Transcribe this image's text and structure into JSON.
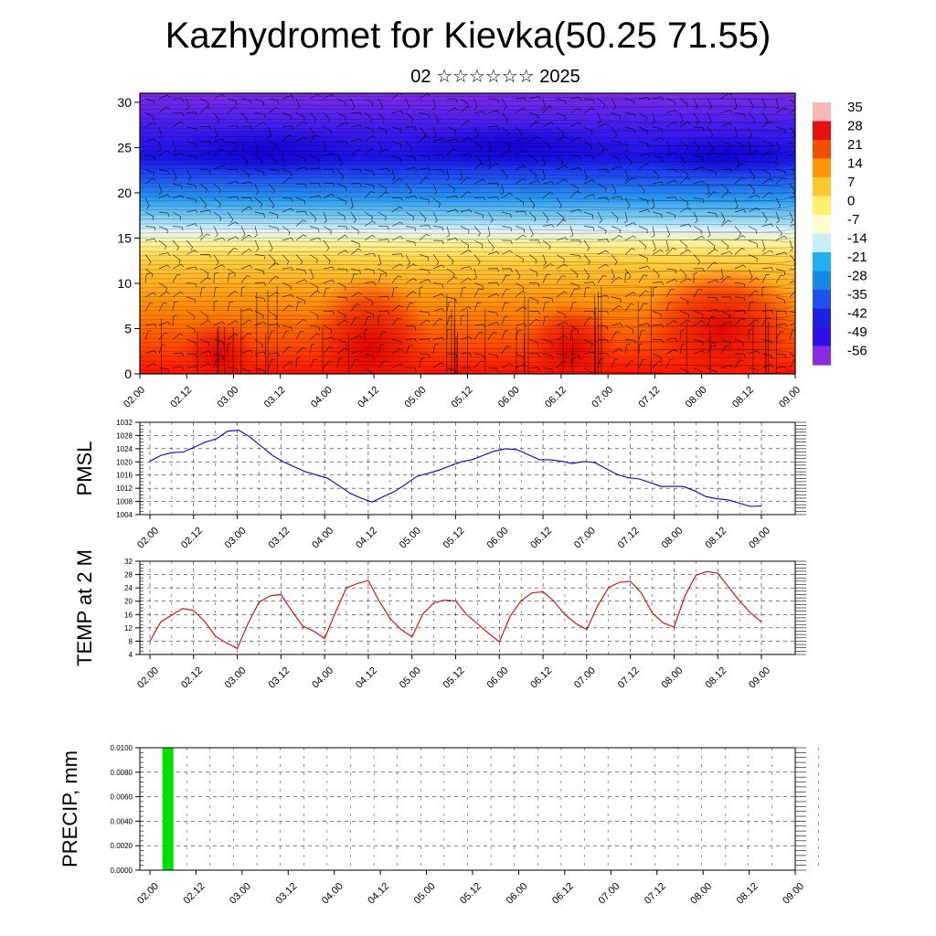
{
  "title": "Kazhydromet for Kievka(50.25 71.55)",
  "subtitle": "02 ☆☆☆☆☆☆ 2025",
  "x_labels": [
    "02.00",
    "02.12",
    "03.00",
    "03.12",
    "04.00",
    "04.12",
    "05.00",
    "05.12",
    "06.00",
    "06.12",
    "07.00",
    "07.12",
    "08.00",
    "08.12",
    "09.00"
  ],
  "chart_data": [
    {
      "type": "heatmap",
      "name": "vertical cross-section",
      "x": [
        "02.00",
        "02.12",
        "03.00",
        "03.12",
        "04.00",
        "04.12",
        "05.00",
        "05.12",
        "06.00",
        "06.12",
        "07.00",
        "07.12",
        "08.00",
        "08.12",
        "09.00"
      ],
      "ylim": [
        0,
        31
      ],
      "y_ticks": [
        "0",
        "5",
        "10",
        "15",
        "20",
        "25",
        "30"
      ],
      "colorbar": {
        "labels": [
          "35",
          "28",
          "21",
          "14",
          "7",
          "0",
          "-7",
          "-14",
          "-21",
          "-28",
          "-35",
          "-42",
          "-49",
          "-56"
        ],
        "colors": [
          "#f8b8b8",
          "#e81010",
          "#f05000",
          "#ff9800",
          "#ffc830",
          "#fff070",
          "#fffdd0",
          "#c8ecf8",
          "#20b0f0",
          "#1888e8",
          "#2050f0",
          "#2020e0",
          "#3010e8",
          "#8a2be2"
        ]
      }
    },
    {
      "type": "line",
      "ylabel": "PMSL",
      "ylim": [
        1004,
        1032
      ],
      "y_ticks": [
        "1004",
        "1008",
        "1012",
        "1016",
        "1020",
        "1024",
        "1028",
        "1032"
      ],
      "color": "#0000cc",
      "x_label_indices": [
        0,
        1,
        2,
        3,
        4,
        5,
        6,
        7,
        8,
        9,
        10,
        11,
        12,
        13,
        14
      ],
      "values": [
        1020.2,
        1022,
        1022.8,
        1023,
        1024.5,
        1026,
        1027,
        1029.3,
        1029.6,
        1027.5,
        1024.8,
        1022,
        1020,
        1018.5,
        1017,
        1016,
        1015,
        1012.8,
        1010.5,
        1009,
        1007.8,
        1009.5,
        1011,
        1013.2,
        1015.6,
        1016.5,
        1017.5,
        1018.8,
        1020,
        1020.7,
        1022,
        1023.3,
        1024,
        1023.7,
        1022.2,
        1020.7,
        1020.6,
        1020.2,
        1019.5,
        1020.1,
        1019.8,
        1018,
        1016.2,
        1015.2,
        1014.8,
        1013.7,
        1012.5,
        1012.6,
        1012.5,
        1011.2,
        1009.5,
        1008.8,
        1008.5,
        1007.5,
        1006.5,
        1006.6
      ]
    },
    {
      "type": "line",
      "ylabel": "TEMP at 2 M",
      "ylim": [
        4,
        32
      ],
      "y_ticks": [
        "4",
        "8",
        "12",
        "16",
        "20",
        "24",
        "28",
        "32"
      ],
      "color": "#dd0000",
      "x_label_indices": [
        0,
        1,
        2,
        3,
        4,
        5,
        6,
        7,
        8,
        9,
        10,
        11,
        12,
        13,
        14
      ],
      "values": [
        8,
        13.8,
        15.8,
        17.8,
        17.2,
        14,
        9.5,
        7.5,
        5.8,
        13.4,
        19.7,
        21.6,
        22,
        17,
        12.5,
        11,
        8.8,
        16.7,
        24,
        25.3,
        26.2,
        20,
        14.8,
        11.5,
        9.3,
        16.2,
        19.5,
        20.3,
        20.1,
        16,
        13.2,
        10.4,
        7.8,
        15.5,
        20.2,
        22.5,
        22.8,
        20,
        16,
        13.3,
        11.5,
        18.6,
        24.1,
        25.7,
        26,
        22.5,
        16.5,
        13.5,
        12.2,
        21.6,
        27.8,
        28.9,
        28.4,
        24.2,
        20.1,
        16.5,
        13.8
      ]
    },
    {
      "type": "bar",
      "ylabel": "PRECIP, mm",
      "ylim": [
        0,
        0.01
      ],
      "y_ticks": [
        "0.0000",
        "0.0020",
        "0.0040",
        "0.0060",
        "0.0080",
        "0.0100"
      ],
      "color": "#00e000",
      "x_label_indices": [
        0,
        1,
        2,
        3,
        4,
        5,
        6,
        7,
        8,
        9,
        10,
        11,
        12,
        13,
        14
      ],
      "bars": [
        {
          "x": 2.4,
          "value": 0.01
        }
      ]
    }
  ]
}
